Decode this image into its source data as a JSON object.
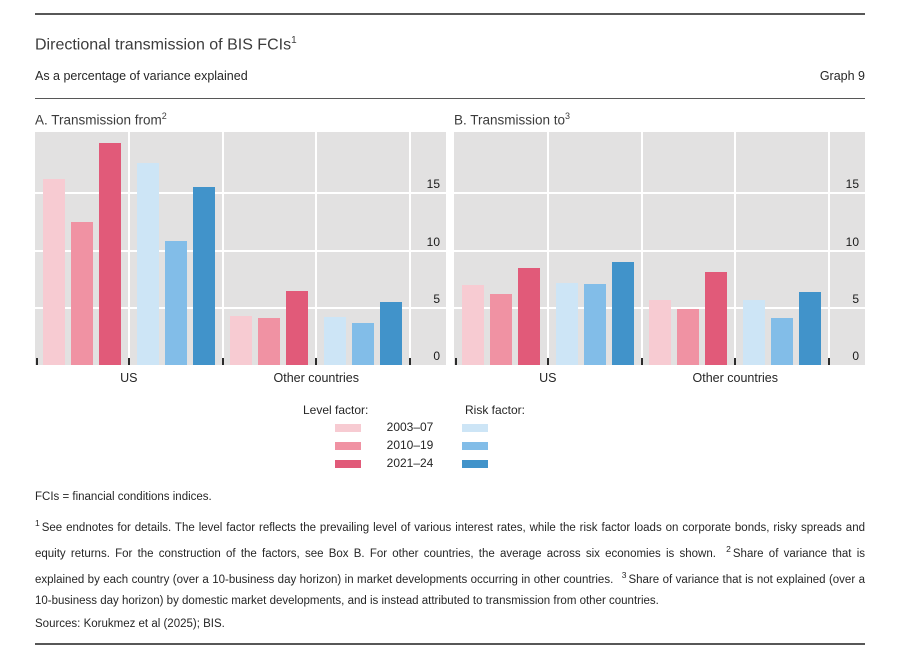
{
  "page": {
    "title": "Directional transmission of BIS FCIs",
    "title_sup": "1",
    "subtitle": "As a percentage of variance explained",
    "graph_label": "Graph 9"
  },
  "legend": {
    "level_header": "Level factor:",
    "risk_header": "Risk factor:",
    "periods": [
      "2003–07",
      "2010–19",
      "2021–24"
    ],
    "level_colors": [
      "#f7cbd2",
      "#f092a3",
      "#e15a79"
    ],
    "risk_colors": [
      "#cde5f6",
      "#82bde8",
      "#4193ca"
    ]
  },
  "notes": {
    "abbrev": "FCIs = financial conditions indices.",
    "fn1_marker": "1",
    "fn1_text": "See endnotes for details. The level factor reflects the prevailing level of various interest rates, while the risk factor loads on corporate bonds, risky spreads and equity returns. For the construction of the factors, see Box B. For other countries, the average across six economies is shown.",
    "fn2_marker": "2",
    "fn2_text": "Share of variance that is explained by each country (over a 10-business day horizon) in market developments occurring in other countries.",
    "fn3_marker": "3",
    "fn3_text": "Share of variance that is not explained (over a 10-business day horizon) by domestic market developments, and is instead attributed to transmission from other countries.",
    "sources": "Sources: Korukmez et al (2025); BIS."
  },
  "chart_data": [
    {
      "type": "bar",
      "title": "A. Transmission from",
      "title_sup": "2",
      "categories": [
        "US",
        "Other countries"
      ],
      "ylim": [
        0,
        20.3
      ],
      "yticks": [
        0,
        5,
        10,
        15
      ],
      "grid": true,
      "axis_side": "right",
      "plot_bg": "#e2e1e1",
      "series": [
        {
          "name": "Level factor 2003–07",
          "color": "#f7cbd2",
          "values": [
            16.2,
            4.3
          ]
        },
        {
          "name": "Level factor 2010–19",
          "color": "#f092a3",
          "values": [
            12.5,
            4.1
          ]
        },
        {
          "name": "Level factor 2021–24",
          "color": "#e15a79",
          "values": [
            19.4,
            6.5
          ]
        },
        {
          "name": "Risk factor 2003–07",
          "color": "#cde5f6",
          "values": [
            17.6,
            4.2
          ]
        },
        {
          "name": "Risk factor 2010–19",
          "color": "#82bde8",
          "values": [
            10.8,
            3.7
          ]
        },
        {
          "name": "Risk factor 2021–24",
          "color": "#4193ca",
          "values": [
            15.5,
            5.5
          ]
        }
      ]
    },
    {
      "type": "bar",
      "title": "B. Transmission to",
      "title_sup": "3",
      "categories": [
        "US",
        "Other countries"
      ],
      "ylim": [
        0,
        20.3
      ],
      "yticks": [
        0,
        5,
        10,
        15
      ],
      "grid": true,
      "axis_side": "right",
      "plot_bg": "#e2e1e1",
      "series": [
        {
          "name": "Level factor 2003–07",
          "color": "#f7cbd2",
          "values": [
            7.0,
            5.7
          ]
        },
        {
          "name": "Level factor 2010–19",
          "color": "#f092a3",
          "values": [
            6.2,
            4.9
          ]
        },
        {
          "name": "Level factor 2021–24",
          "color": "#e15a79",
          "values": [
            8.5,
            8.1
          ]
        },
        {
          "name": "Risk factor 2003–07",
          "color": "#cde5f6",
          "values": [
            7.2,
            5.7
          ]
        },
        {
          "name": "Risk factor 2010–19",
          "color": "#82bde8",
          "values": [
            7.1,
            4.1
          ]
        },
        {
          "name": "Risk factor 2021–24",
          "color": "#4193ca",
          "values": [
            9.0,
            6.4
          ]
        }
      ]
    }
  ]
}
